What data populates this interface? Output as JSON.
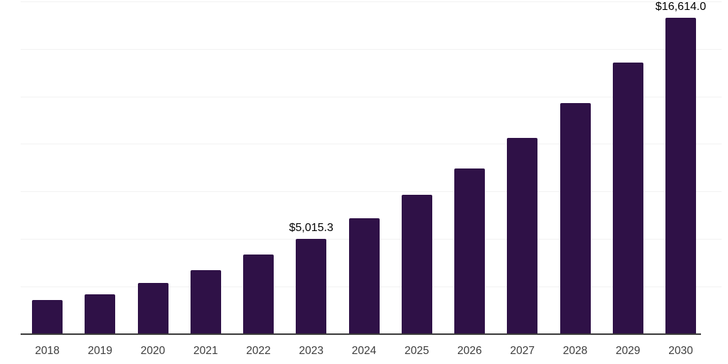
{
  "chart_data": {
    "type": "bar",
    "title": "",
    "xlabel": "",
    "ylabel": "",
    "categories": [
      "2018",
      "2019",
      "2020",
      "2021",
      "2022",
      "2023",
      "2024",
      "2025",
      "2026",
      "2027",
      "2028",
      "2029",
      "2030"
    ],
    "values": [
      1780,
      2100,
      2675,
      3370,
      4190,
      5015.3,
      6090,
      7340,
      8690,
      10300,
      12140,
      14260,
      16614.0
    ],
    "data_labels": [
      "",
      "",
      "",
      "",
      "",
      "$5,015.3",
      "",
      "",
      "",
      "",
      "",
      "",
      "$16,614.0"
    ],
    "ylim": [
      0,
      17500
    ],
    "gridline_step": 2500,
    "grid": "horizontal-only",
    "legend": "none",
    "colors": {
      "bar": "#2F1147",
      "axis_line": "#3A3A3A",
      "gridline": "#F2F2F2",
      "value_label": "#000000",
      "tick_label": "#3D3D3D"
    }
  }
}
